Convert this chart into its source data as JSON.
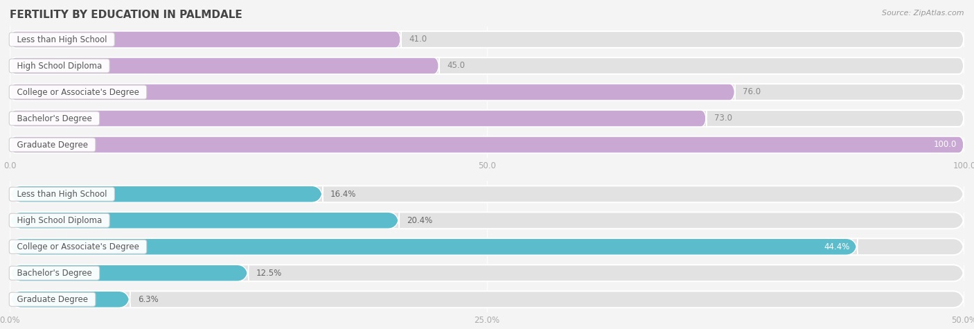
{
  "title": "FERTILITY BY EDUCATION IN PALMDALE",
  "source": "Source: ZipAtlas.com",
  "top_chart": {
    "categories": [
      "Less than High School",
      "High School Diploma",
      "College or Associate's Degree",
      "Bachelor's Degree",
      "Graduate Degree"
    ],
    "values": [
      41.0,
      45.0,
      76.0,
      73.0,
      100.0
    ],
    "xlim": [
      0,
      100
    ],
    "xticks": [
      0.0,
      50.0,
      100.0
    ],
    "bar_color": "#c9a8d4",
    "bar_color_dark": "#a87dbf",
    "value_color_inside": "#ffffff",
    "value_color_outside": "#888888",
    "inside_threshold": 85
  },
  "bottom_chart": {
    "categories": [
      "Less than High School",
      "High School Diploma",
      "College or Associate's Degree",
      "Bachelor's Degree",
      "Graduate Degree"
    ],
    "values": [
      16.4,
      20.4,
      44.4,
      12.5,
      6.3
    ],
    "xlim": [
      0,
      50
    ],
    "xticks": [
      0.0,
      25.0,
      50.0
    ],
    "bar_color": "#5bbccc",
    "bar_color_dark": "#2a9aaa",
    "value_color_inside": "#ffffff",
    "value_color_outside": "#666666",
    "inside_threshold": 85
  },
  "bg_color": "#f4f4f4",
  "bar_bg_color": "#e2e2e2",
  "label_box_color": "#ffffff",
  "label_box_edge": "#cccccc",
  "title_color": "#444444",
  "source_color": "#999999",
  "tick_color": "#aaaaaa",
  "bar_height": 0.62,
  "label_fontsize": 8.5,
  "tick_fontsize": 8.5,
  "title_fontsize": 11
}
